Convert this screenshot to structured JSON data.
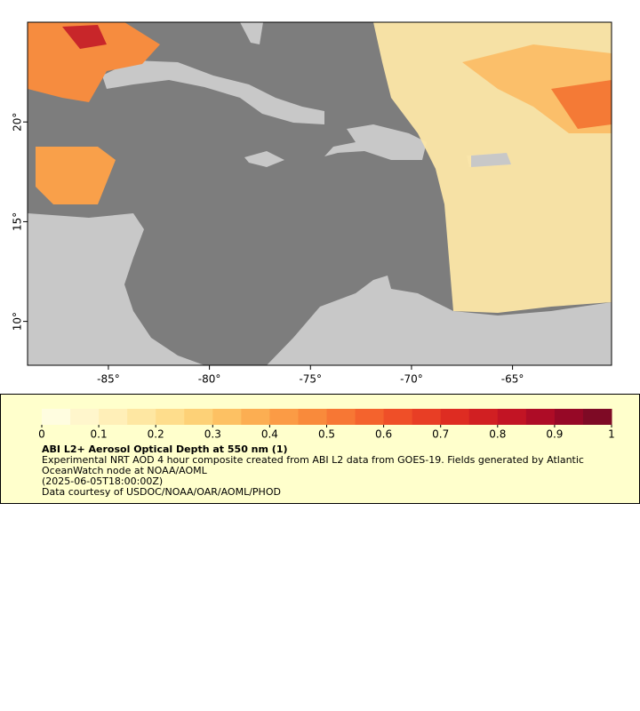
{
  "chart_data": {
    "type": "map",
    "xlim": [
      -89,
      -60.1
    ],
    "ylim": [
      7.8,
      25
    ],
    "xticks": [
      {
        "value": -85,
        "label": "-85°"
      },
      {
        "value": -80,
        "label": "-80°"
      },
      {
        "value": -75,
        "label": "-75°"
      },
      {
        "value": -70,
        "label": "-70°"
      },
      {
        "value": -65,
        "label": "-65°"
      }
    ],
    "yticks": [
      {
        "value": 10,
        "label": "10°"
      },
      {
        "value": 15,
        "label": "15°"
      },
      {
        "value": 20,
        "label": "20°"
      }
    ],
    "colorbar": {
      "title": "ABI L2+ Aerosol Optical Depth at 550 nm (1)",
      "lim": [
        0,
        1
      ],
      "ticks": [
        0,
        0.1,
        0.2,
        0.3,
        0.4,
        0.5,
        0.6,
        0.7,
        0.8,
        0.9,
        1
      ],
      "colors": [
        "#fffde0",
        "#fff6cc",
        "#ffefb8",
        "#fee7a2",
        "#fedd8c",
        "#fdd177",
        "#fdc163",
        "#fcae52",
        "#fb9b45",
        "#f98a3b",
        "#f77734",
        "#f4632d",
        "#ef4f28",
        "#e83e25",
        "#de2c22",
        "#d11f22",
        "#c21424",
        "#ae0c26",
        "#960826",
        "#7e0a25"
      ]
    },
    "description": "Experimental NRT AOD 4 hour composite created from ABI L2 data from GOES-19. Fields generated by Atlantic OceanWatch node at NOAA/AOML",
    "timestamp": "(2025-06-05T18:00:00Z)",
    "credit": "Data courtesy of USDOC/NOAA/OAR/AOML/PHOD"
  }
}
